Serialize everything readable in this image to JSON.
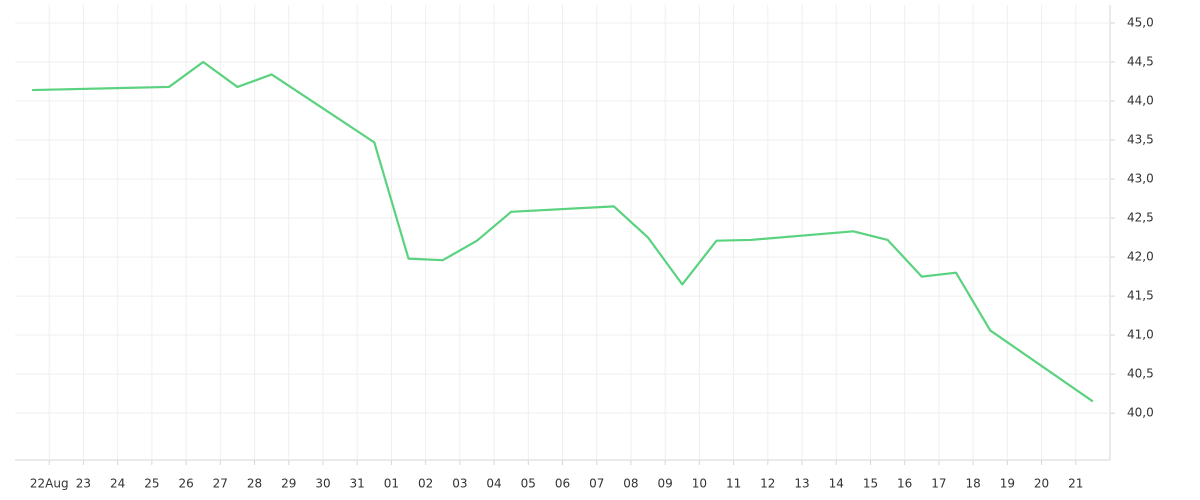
{
  "chart_data": {
    "type": "line",
    "x": [
      -0.5,
      3.5,
      4.5,
      5.5,
      6.5,
      9.5,
      10.5,
      11.5,
      12.5,
      13.5,
      16.5,
      17.5,
      18.5,
      19.5,
      20.5,
      23.5,
      24.5,
      25.5,
      26.5,
      27.5,
      30.5
    ],
    "series": [
      {
        "color": "#5ad27f",
        "values": [
          44.14,
          44.18,
          44.5,
          44.18,
          44.34,
          43.47,
          41.98,
          41.96,
          42.21,
          42.58,
          42.65,
          42.25,
          41.65,
          42.21,
          42.22,
          42.33,
          42.22,
          41.75,
          41.8,
          41.06,
          40.15
        ]
      }
    ],
    "xlim": [
      -1,
      31
    ],
    "xticks": [
      {
        "value": 0,
        "label": "22Aug"
      },
      {
        "value": 1,
        "label": "23"
      },
      {
        "value": 2,
        "label": "24"
      },
      {
        "value": 3,
        "label": "25"
      },
      {
        "value": 4,
        "label": "26"
      },
      {
        "value": 5,
        "label": "27"
      },
      {
        "value": 6,
        "label": "28"
      },
      {
        "value": 7,
        "label": "29"
      },
      {
        "value": 8,
        "label": "30"
      },
      {
        "value": 9,
        "label": "31"
      },
      {
        "value": 10,
        "label": "01"
      },
      {
        "value": 11,
        "label": "02"
      },
      {
        "value": 12,
        "label": "03"
      },
      {
        "value": 13,
        "label": "04"
      },
      {
        "value": 14,
        "label": "05"
      },
      {
        "value": 15,
        "label": "06"
      },
      {
        "value": 16,
        "label": "07"
      },
      {
        "value": 17,
        "label": "08"
      },
      {
        "value": 18,
        "label": "09"
      },
      {
        "value": 19,
        "label": "10"
      },
      {
        "value": 20,
        "label": "11"
      },
      {
        "value": 21,
        "label": "12"
      },
      {
        "value": 22,
        "label": "13"
      },
      {
        "value": 23,
        "label": "14"
      },
      {
        "value": 24,
        "label": "15"
      },
      {
        "value": 25,
        "label": "16"
      },
      {
        "value": 26,
        "label": "17"
      },
      {
        "value": 27,
        "label": "18"
      },
      {
        "value": 28,
        "label": "19"
      },
      {
        "value": 29,
        "label": "20"
      },
      {
        "value": 30,
        "label": "21"
      }
    ],
    "ylim": [
      39.4,
      45.23
    ],
    "yticks": [
      {
        "value": 40,
        "label": "40,0"
      },
      {
        "value": 40.5,
        "label": "40,5"
      },
      {
        "value": 41,
        "label": "41,0"
      },
      {
        "value": 41.5,
        "label": "41,5"
      },
      {
        "value": 42,
        "label": "42,0"
      },
      {
        "value": 42.5,
        "label": "42,5"
      },
      {
        "value": 43,
        "label": "43,0"
      },
      {
        "value": 43.5,
        "label": "43,5"
      },
      {
        "value": 44,
        "label": "44,0"
      },
      {
        "value": 44.5,
        "label": "44,5"
      },
      {
        "value": 45,
        "label": "45,0"
      }
    ],
    "grid": true
  }
}
